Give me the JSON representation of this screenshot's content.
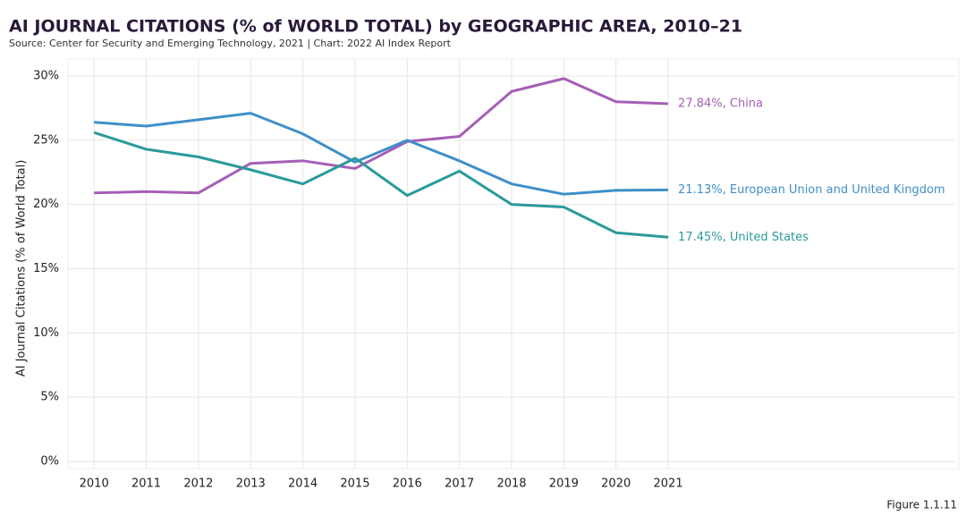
{
  "chart_data": {
    "type": "line",
    "title": "AI JOURNAL CITATIONS (% of WORLD TOTAL) by GEOGRAPHIC AREA, 2010–21",
    "subtitle": "Source: Center for Security and Emerging Technology, 2021 | Chart: 2022 AI Index Report",
    "ylabel": "AI Journal Citations (% of World Total)",
    "footnote": "Figure 1.1.11",
    "x": [
      2010,
      2011,
      2012,
      2013,
      2014,
      2015,
      2016,
      2017,
      2018,
      2019,
      2020,
      2021
    ],
    "xlim": [
      2009.5,
      2026.5
    ],
    "xticks": [
      2010,
      2011,
      2012,
      2013,
      2014,
      2015,
      2016,
      2017,
      2018,
      2019,
      2020,
      2021
    ],
    "ylim": [
      0,
      30
    ],
    "yticks": [
      {
        "value": 0,
        "label": "0%"
      },
      {
        "value": 5,
        "label": "5%"
      },
      {
        "value": 10,
        "label": "10%"
      },
      {
        "value": 15,
        "label": "15%"
      },
      {
        "value": 20,
        "label": "20%"
      },
      {
        "value": 25,
        "label": "25%"
      },
      {
        "value": 30,
        "label": "30%"
      }
    ],
    "grid": true,
    "series": [
      {
        "name": "27.84%, China",
        "color": "#a65fb5",
        "values": [
          20.9,
          21.0,
          20.9,
          23.2,
          23.4,
          22.8,
          24.9,
          25.3,
          28.8,
          29.8,
          28.0,
          27.84
        ]
      },
      {
        "name": "21.13%, European Union and United Kingdom",
        "color": "#3f8fc9",
        "values": [
          26.4,
          26.1,
          26.6,
          27.1,
          25.5,
          23.3,
          25.0,
          23.4,
          21.6,
          20.8,
          21.1,
          21.13
        ]
      },
      {
        "name": "17.45%, United States",
        "color": "#2b9a9a",
        "values": [
          25.6,
          24.3,
          23.7,
          22.7,
          21.6,
          23.6,
          20.7,
          22.6,
          20.0,
          19.8,
          17.8,
          17.45
        ]
      }
    ]
  }
}
